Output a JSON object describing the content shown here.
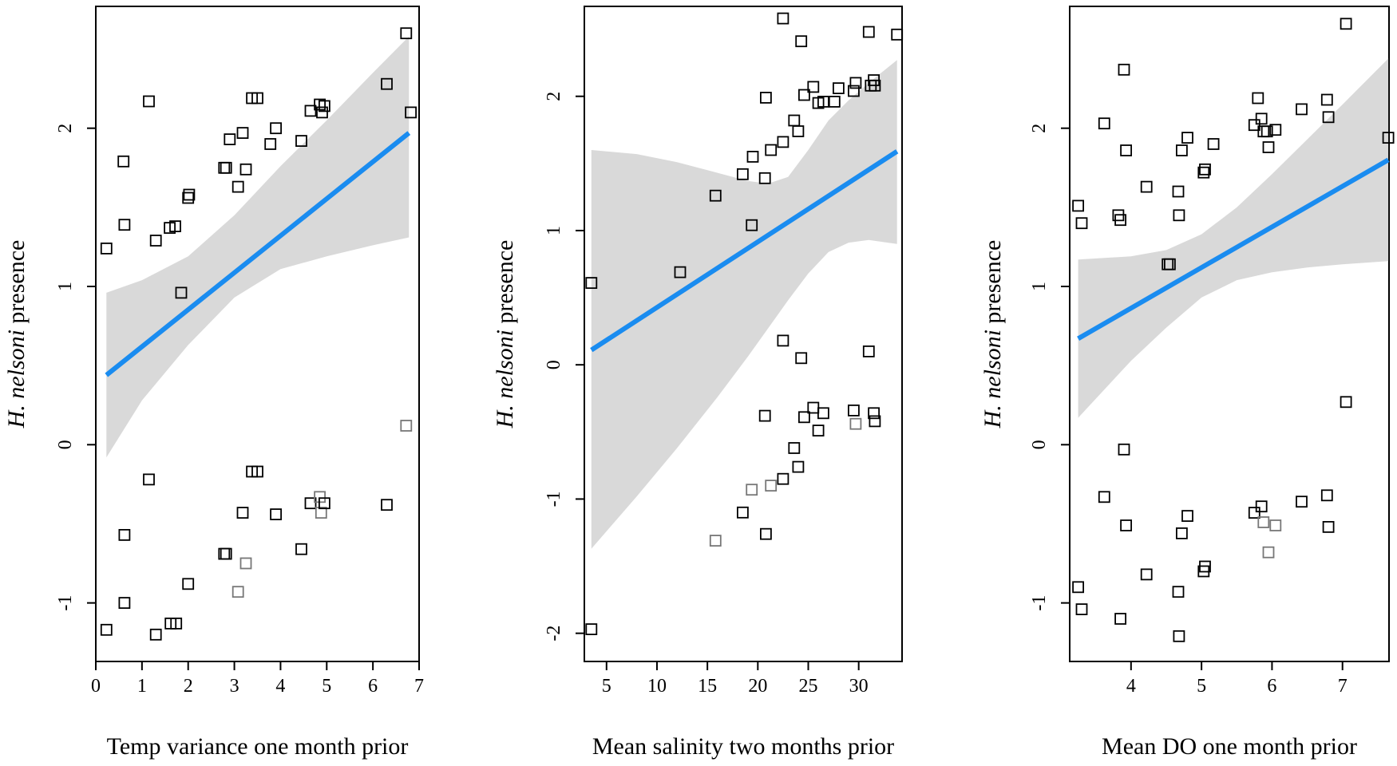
{
  "chart_data": [
    {
      "type": "scatter",
      "xlabel": "Temp variance one month prior",
      "ylabel": {
        "species": "H. nelsoni",
        "suffix": " presence"
      },
      "xlim": [
        0,
        7
      ],
      "ylim": [
        -1.37,
        2.77
      ],
      "x_ticks": [
        0,
        1,
        2,
        3,
        4,
        5,
        6,
        7
      ],
      "y_ticks": [
        -1,
        0,
        1,
        2
      ],
      "colors": {
        "point": "#000000",
        "point_light": "#777777",
        "fit": "#1a8cf0",
        "band": "#d9d9d9"
      },
      "fit_line": {
        "x": [
          0.23,
          6.78
        ],
        "y": [
          0.44,
          1.97
        ]
      },
      "confidence_band": {
        "x": [
          0.23,
          1,
          2,
          3,
          4,
          5,
          6,
          6.78
        ],
        "lower": [
          -0.08,
          0.28,
          0.63,
          0.93,
          1.11,
          1.19,
          1.26,
          1.31
        ],
        "upper": [
          0.96,
          1.04,
          1.19,
          1.45,
          1.76,
          2.05,
          2.35,
          2.58
        ]
      },
      "points": [
        {
          "x": 0.23,
          "y": 1.24
        },
        {
          "x": 0.6,
          "y": 1.79
        },
        {
          "x": 0.62,
          "y": 1.39
        },
        {
          "x": 1.15,
          "y": 2.17
        },
        {
          "x": 1.3,
          "y": 1.29
        },
        {
          "x": 1.6,
          "y": 1.37
        },
        {
          "x": 1.72,
          "y": 1.38
        },
        {
          "x": 1.85,
          "y": 0.96
        },
        {
          "x": 2.0,
          "y": 1.56
        },
        {
          "x": 2.02,
          "y": 1.58
        },
        {
          "x": 2.78,
          "y": 1.75
        },
        {
          "x": 2.82,
          "y": 1.75
        },
        {
          "x": 2.9,
          "y": 1.93
        },
        {
          "x": 3.08,
          "y": 1.63
        },
        {
          "x": 3.18,
          "y": 1.97
        },
        {
          "x": 3.25,
          "y": 1.74
        },
        {
          "x": 3.38,
          "y": 2.19
        },
        {
          "x": 3.5,
          "y": 2.19
        },
        {
          "x": 3.78,
          "y": 1.9
        },
        {
          "x": 3.9,
          "y": 2.0
        },
        {
          "x": 4.45,
          "y": 1.92
        },
        {
          "x": 4.65,
          "y": 2.11
        },
        {
          "x": 4.85,
          "y": 2.15
        },
        {
          "x": 4.9,
          "y": 2.1
        },
        {
          "x": 4.95,
          "y": 2.14
        },
        {
          "x": 6.3,
          "y": 2.28
        },
        {
          "x": 6.72,
          "y": 2.6
        },
        {
          "x": 6.82,
          "y": 2.1
        },
        {
          "x": 0.23,
          "y": -1.17
        },
        {
          "x": 0.62,
          "y": -1.0
        },
        {
          "x": 0.62,
          "y": -0.57
        },
        {
          "x": 1.15,
          "y": -0.22
        },
        {
          "x": 1.3,
          "y": -1.2
        },
        {
          "x": 1.62,
          "y": -1.13
        },
        {
          "x": 1.74,
          "y": -1.13
        },
        {
          "x": 2.0,
          "y": -0.88
        },
        {
          "x": 2.78,
          "y": -0.69
        },
        {
          "x": 2.82,
          "y": -0.69
        },
        {
          "x": 3.08,
          "y": -0.93,
          "light": true
        },
        {
          "x": 3.18,
          "y": -0.43
        },
        {
          "x": 3.25,
          "y": -0.75,
          "light": true
        },
        {
          "x": 3.38,
          "y": -0.17
        },
        {
          "x": 3.5,
          "y": -0.17
        },
        {
          "x": 3.9,
          "y": -0.44
        },
        {
          "x": 4.45,
          "y": -0.66
        },
        {
          "x": 4.65,
          "y": -0.37
        },
        {
          "x": 4.85,
          "y": -0.33,
          "light": true
        },
        {
          "x": 4.88,
          "y": -0.43,
          "light": true
        },
        {
          "x": 4.95,
          "y": -0.37
        },
        {
          "x": 6.3,
          "y": -0.38
        },
        {
          "x": 6.72,
          "y": 0.12,
          "light": true
        }
      ]
    },
    {
      "type": "scatter",
      "xlabel": "Mean salinity two months prior",
      "ylabel": {
        "species": "H. nelsoni",
        "suffix": " presence"
      },
      "xlim": [
        2.8,
        34.3
      ],
      "ylim": [
        -2.21,
        2.67
      ],
      "x_ticks": [
        5,
        10,
        15,
        20,
        25,
        30
      ],
      "y_ticks": [
        -2,
        -1,
        0,
        1,
        2
      ],
      "colors": {
        "point": "#000000",
        "point_light": "#777777",
        "fit": "#1a8cf0",
        "band": "#d9d9d9"
      },
      "fit_line": {
        "x": [
          3.5,
          33.8
        ],
        "y": [
          0.11,
          1.59
        ]
      },
      "confidence_band": {
        "x": [
          3.5,
          8,
          12,
          16,
          19,
          21,
          23,
          25,
          27,
          29,
          31,
          33.8
        ],
        "lower": [
          -1.37,
          -0.98,
          -0.62,
          -0.24,
          0.06,
          0.27,
          0.48,
          0.68,
          0.84,
          0.91,
          0.93,
          0.9
        ],
        "upper": [
          1.6,
          1.57,
          1.51,
          1.43,
          1.37,
          1.35,
          1.4,
          1.6,
          1.82,
          1.97,
          2.1,
          2.27
        ]
      },
      "points": [
        {
          "x": 3.5,
          "y": 0.61
        },
        {
          "x": 12.3,
          "y": 0.69
        },
        {
          "x": 15.8,
          "y": 1.26
        },
        {
          "x": 18.5,
          "y": 1.42
        },
        {
          "x": 19.4,
          "y": 1.04
        },
        {
          "x": 19.5,
          "y": 1.55
        },
        {
          "x": 20.7,
          "y": 1.39
        },
        {
          "x": 20.8,
          "y": 1.99
        },
        {
          "x": 21.3,
          "y": 1.6
        },
        {
          "x": 22.5,
          "y": 2.58
        },
        {
          "x": 22.5,
          "y": 1.66
        },
        {
          "x": 23.6,
          "y": 1.82
        },
        {
          "x": 24.0,
          "y": 1.74
        },
        {
          "x": 24.3,
          "y": 2.41
        },
        {
          "x": 24.6,
          "y": 2.01
        },
        {
          "x": 25.5,
          "y": 2.07
        },
        {
          "x": 26.0,
          "y": 1.95
        },
        {
          "x": 26.5,
          "y": 1.96
        },
        {
          "x": 27.6,
          "y": 1.96
        },
        {
          "x": 28.0,
          "y": 2.06
        },
        {
          "x": 29.5,
          "y": 2.04
        },
        {
          "x": 29.7,
          "y": 2.1
        },
        {
          "x": 31.0,
          "y": 2.48
        },
        {
          "x": 31.2,
          "y": 2.08
        },
        {
          "x": 31.5,
          "y": 2.12
        },
        {
          "x": 31.6,
          "y": 2.08
        },
        {
          "x": 33.8,
          "y": 2.46
        },
        {
          "x": 3.5,
          "y": -1.97
        },
        {
          "x": 15.8,
          "y": -1.31,
          "light": true
        },
        {
          "x": 18.5,
          "y": -1.1
        },
        {
          "x": 19.4,
          "y": -0.93,
          "light": true
        },
        {
          "x": 20.7,
          "y": -0.38
        },
        {
          "x": 20.8,
          "y": -1.26
        },
        {
          "x": 21.3,
          "y": -0.9,
          "light": true
        },
        {
          "x": 22.5,
          "y": 0.18
        },
        {
          "x": 22.5,
          "y": -0.85
        },
        {
          "x": 23.6,
          "y": -0.62
        },
        {
          "x": 24.0,
          "y": -0.76
        },
        {
          "x": 24.3,
          "y": 0.05
        },
        {
          "x": 24.6,
          "y": -0.39
        },
        {
          "x": 25.5,
          "y": -0.32
        },
        {
          "x": 26.0,
          "y": -0.49
        },
        {
          "x": 26.5,
          "y": -0.36
        },
        {
          "x": 29.5,
          "y": -0.34
        },
        {
          "x": 29.7,
          "y": -0.44,
          "light": true
        },
        {
          "x": 31.0,
          "y": 0.1
        },
        {
          "x": 31.5,
          "y": -0.36
        },
        {
          "x": 31.6,
          "y": -0.42
        }
      ]
    },
    {
      "type": "scatter",
      "xlabel": "Mean DO one month prior",
      "ylabel": {
        "species": "H. nelsoni",
        "suffix": " presence"
      },
      "xlim": [
        3.13,
        7.66
      ],
      "ylim": [
        -1.37,
        2.77
      ],
      "x_ticks": [
        4,
        5,
        6,
        7
      ],
      "y_ticks": [
        -1,
        0,
        1,
        2
      ],
      "colors": {
        "point": "#000000",
        "point_light": "#777777",
        "fit": "#1a8cf0",
        "band": "#d9d9d9"
      },
      "fit_line": {
        "x": [
          3.25,
          7.65
        ],
        "y": [
          0.67,
          1.8
        ]
      },
      "confidence_band": {
        "x": [
          3.25,
          4,
          4.5,
          5,
          5.5,
          6,
          6.5,
          7,
          7.65
        ],
        "lower": [
          0.17,
          0.53,
          0.74,
          0.93,
          1.04,
          1.09,
          1.12,
          1.14,
          1.16
        ],
        "upper": [
          1.17,
          1.19,
          1.23,
          1.33,
          1.5,
          1.71,
          1.93,
          2.15,
          2.44
        ]
      },
      "points": [
        {
          "x": 3.25,
          "y": 1.51
        },
        {
          "x": 3.3,
          "y": 1.4
        },
        {
          "x": 3.62,
          "y": 2.03
        },
        {
          "x": 3.82,
          "y": 1.45
        },
        {
          "x": 3.85,
          "y": 1.42
        },
        {
          "x": 3.9,
          "y": 2.37
        },
        {
          "x": 3.93,
          "y": 1.86
        },
        {
          "x": 4.22,
          "y": 1.63
        },
        {
          "x": 4.52,
          "y": 1.14
        },
        {
          "x": 4.55,
          "y": 1.14
        },
        {
          "x": 4.67,
          "y": 1.6
        },
        {
          "x": 4.68,
          "y": 1.45
        },
        {
          "x": 4.72,
          "y": 1.86
        },
        {
          "x": 4.8,
          "y": 1.94
        },
        {
          "x": 5.03,
          "y": 1.72
        },
        {
          "x": 5.05,
          "y": 1.74
        },
        {
          "x": 5.17,
          "y": 1.9
        },
        {
          "x": 5.75,
          "y": 2.02
        },
        {
          "x": 5.8,
          "y": 2.19
        },
        {
          "x": 5.85,
          "y": 2.06
        },
        {
          "x": 5.88,
          "y": 1.98
        },
        {
          "x": 5.93,
          "y": 1.98
        },
        {
          "x": 5.95,
          "y": 1.88
        },
        {
          "x": 6.05,
          "y": 1.99
        },
        {
          "x": 6.42,
          "y": 2.12
        },
        {
          "x": 6.78,
          "y": 2.18
        },
        {
          "x": 6.8,
          "y": 2.07
        },
        {
          "x": 7.05,
          "y": 2.66
        },
        {
          "x": 7.65,
          "y": 1.94
        },
        {
          "x": 3.25,
          "y": -0.9
        },
        {
          "x": 3.3,
          "y": -1.04
        },
        {
          "x": 3.62,
          "y": -0.33
        },
        {
          "x": 3.85,
          "y": -1.1
        },
        {
          "x": 3.9,
          "y": -0.03
        },
        {
          "x": 3.93,
          "y": -0.51
        },
        {
          "x": 4.22,
          "y": -0.82
        },
        {
          "x": 4.67,
          "y": -0.93
        },
        {
          "x": 4.68,
          "y": -1.21
        },
        {
          "x": 4.72,
          "y": -0.56
        },
        {
          "x": 4.8,
          "y": -0.45
        },
        {
          "x": 5.03,
          "y": -0.8
        },
        {
          "x": 5.05,
          "y": -0.77
        },
        {
          "x": 5.75,
          "y": -0.43
        },
        {
          "x": 5.85,
          "y": -0.39
        },
        {
          "x": 5.88,
          "y": -0.49,
          "light": true
        },
        {
          "x": 5.95,
          "y": -0.68,
          "light": true
        },
        {
          "x": 6.05,
          "y": -0.51,
          "light": true
        },
        {
          "x": 6.42,
          "y": -0.36
        },
        {
          "x": 6.78,
          "y": -0.32
        },
        {
          "x": 6.8,
          "y": -0.52
        },
        {
          "x": 7.05,
          "y": 0.27
        }
      ]
    }
  ]
}
